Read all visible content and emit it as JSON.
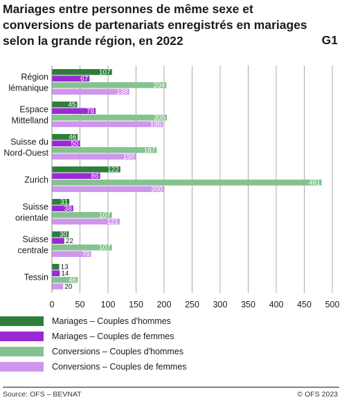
{
  "title": "Mariages entre personnes de même sexe et conversions de partenariats enregistrés en mariages selon la grande région, en 2022",
  "figure_number": "G1",
  "source": "Source: OFS – BEVNAT",
  "copyright": "© OFS 2023",
  "colors": {
    "mariages_hommes": "#2e7d3c",
    "mariages_femmes": "#9b2ad6",
    "conversions_hommes": "#86c290",
    "conversions_femmes": "#cf97ec"
  },
  "chart_data": {
    "type": "bar",
    "orientation": "horizontal",
    "categories": [
      [
        "Région",
        "lémanique"
      ],
      [
        "Espace",
        "Mittelland"
      ],
      [
        "Suisse du",
        "Nord-Ouest"
      ],
      [
        "Zurich"
      ],
      [
        "Suisse",
        "orientale"
      ],
      [
        "Suisse",
        "centrale"
      ],
      [
        "Tessin"
      ]
    ],
    "series": [
      {
        "name": "Mariages – Couples d'hommes",
        "values": [
          107,
          45,
          46,
          122,
          31,
          30,
          13
        ]
      },
      {
        "name": "Mariages – Couples de femmes",
        "values": [
          67,
          78,
          50,
          86,
          38,
          22,
          14
        ]
      },
      {
        "name": "Conversions – Couples d'hommes",
        "values": [
          204,
          205,
          187,
          481,
          107,
          107,
          46
        ]
      },
      {
        "name": "Conversions – Couples de femmes",
        "values": [
          138,
          198,
          150,
          200,
          121,
          70,
          20
        ]
      }
    ],
    "xlim": [
      0,
      500
    ],
    "xticks": [
      0,
      50,
      100,
      150,
      200,
      250,
      300,
      350,
      400,
      450,
      500
    ],
    "grid": true,
    "legend_position": "bottom",
    "data_labels": true
  }
}
